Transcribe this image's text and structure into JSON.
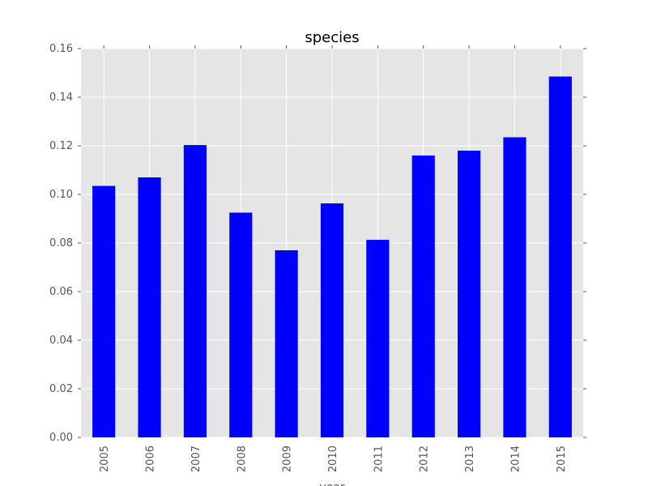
{
  "chart_data": {
    "type": "bar",
    "title": "species",
    "xlabel": "year",
    "ylabel": "",
    "categories": [
      "2005",
      "2006",
      "2007",
      "2008",
      "2009",
      "2010",
      "2011",
      "2012",
      "2013",
      "2014",
      "2015"
    ],
    "values": [
      0.1035,
      0.107,
      0.1203,
      0.0925,
      0.077,
      0.0963,
      0.0813,
      0.116,
      0.118,
      0.1235,
      0.1485
    ],
    "ylim": [
      0,
      0.16
    ],
    "yticks": [
      "0.00",
      "0.02",
      "0.04",
      "0.06",
      "0.08",
      "0.10",
      "0.12",
      "0.14",
      "0.16"
    ],
    "grid": true,
    "legend": "none",
    "bar_color": "#0000ff",
    "plot_background": "#e5e5e5",
    "grid_color": "#ffffff"
  }
}
